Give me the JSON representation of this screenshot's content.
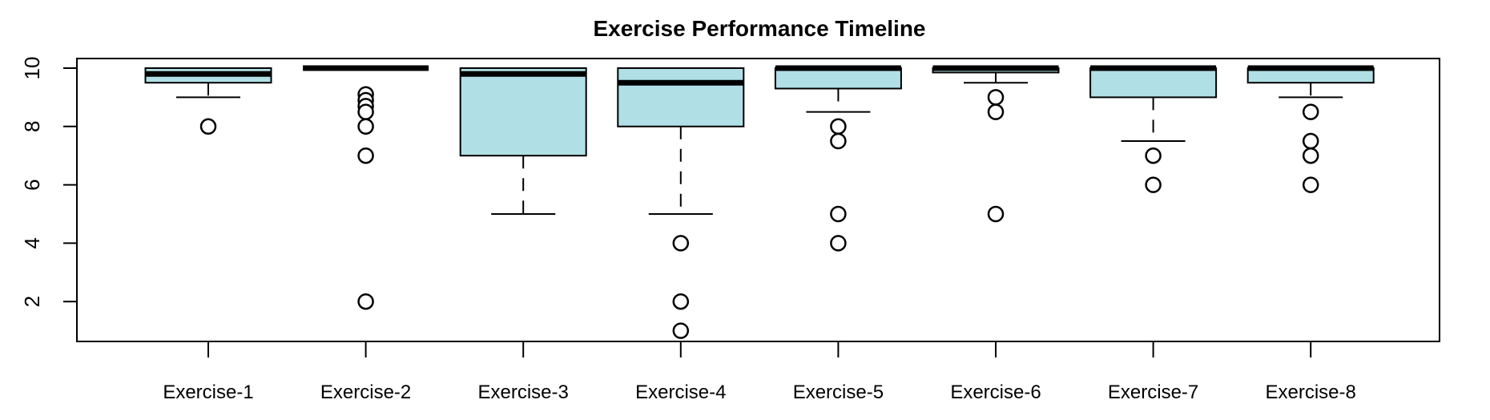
{
  "chart_data": {
    "type": "boxplot",
    "title": "Exercise Performance Timeline",
    "xlabel": "",
    "ylabel": "",
    "categories": [
      "Exercise-1",
      "Exercise-2",
      "Exercise-3",
      "Exercise-4",
      "Exercise-5",
      "Exercise-6",
      "Exercise-7",
      "Exercise-8"
    ],
    "y_ticks": [
      2,
      4,
      6,
      8,
      10
    ],
    "ylim": [
      0.6,
      10.4
    ],
    "grid": false,
    "legend": "none",
    "box_fill_color": "#B0E0E6",
    "box_border_color": "#000000",
    "background_color": "#FFFFFF",
    "series": [
      {
        "name": "Exercise-1",
        "whisker_low": 9,
        "q1": 9.5,
        "median": 9.8,
        "q3": 10,
        "whisker_high": 10,
        "outliers": [
          8
        ]
      },
      {
        "name": "Exercise-2",
        "whisker_low": 10,
        "q1": 10,
        "median": 10,
        "q3": 10,
        "whisker_high": 10,
        "outliers": [
          9.1,
          8.9,
          8.7,
          8.5,
          8,
          7,
          2
        ]
      },
      {
        "name": "Exercise-3",
        "whisker_low": 5,
        "q1": 7,
        "median": 9.8,
        "q3": 10,
        "whisker_high": 10,
        "outliers": []
      },
      {
        "name": "Exercise-4",
        "whisker_low": 5,
        "q1": 8,
        "median": 9.5,
        "q3": 10,
        "whisker_high": 10,
        "outliers": [
          4,
          2,
          1
        ]
      },
      {
        "name": "Exercise-5",
        "whisker_low": 8.5,
        "q1": 9.3,
        "median": 10,
        "q3": 10,
        "whisker_high": 10,
        "outliers": [
          8,
          7.5,
          5,
          4
        ]
      },
      {
        "name": "Exercise-6",
        "whisker_low": 9.5,
        "q1": 9.85,
        "median": 10,
        "q3": 10,
        "whisker_high": 10,
        "outliers": [
          9,
          8.5,
          5
        ]
      },
      {
        "name": "Exercise-7",
        "whisker_low": 7.5,
        "q1": 9,
        "median": 10,
        "q3": 10,
        "whisker_high": 10,
        "outliers": [
          7,
          6
        ]
      },
      {
        "name": "Exercise-8",
        "whisker_low": 9,
        "q1": 9.5,
        "median": 10,
        "q3": 10,
        "whisker_high": 10,
        "outliers": [
          8.5,
          7.5,
          7,
          6
        ]
      }
    ]
  }
}
